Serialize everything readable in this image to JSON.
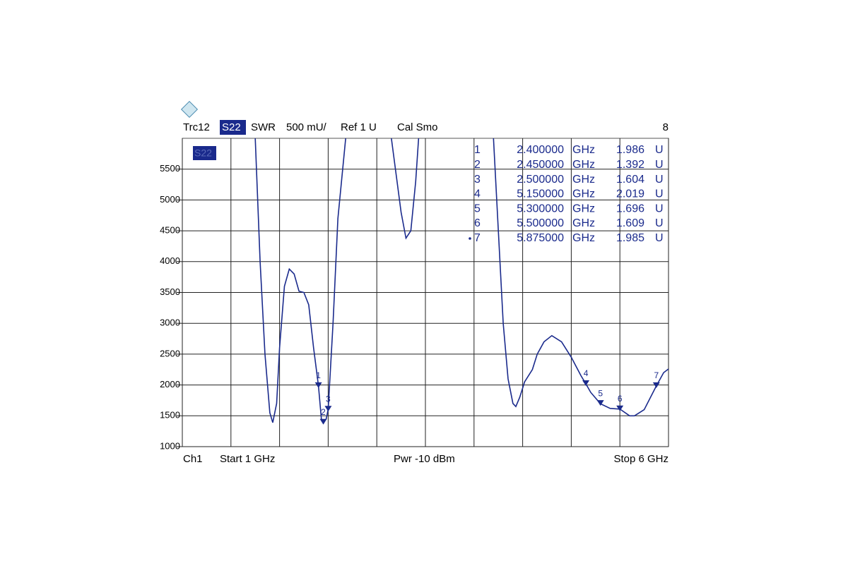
{
  "chart_data": {
    "type": "line",
    "header": {
      "trace": "Trc12",
      "param": "S22",
      "format": "SWR",
      "scale": "500 mU/",
      "ref": "Ref 1 U",
      "status": "Cal Smo",
      "window": "8"
    },
    "footer": {
      "channel": "Ch1",
      "start": "Start  1 GHz",
      "power": "Pwr  -10 dBm",
      "stop": "Stop  6 GHz"
    },
    "trace_label": "S22",
    "xlim": [
      1,
      6
    ],
    "xticks": [
      1,
      1.5,
      2,
      2.5,
      3,
      3.5,
      4,
      4.5,
      5,
      5.5,
      6
    ],
    "ylim": [
      1000,
      6000
    ],
    "yticks": [
      1000,
      1500,
      2000,
      2500,
      3000,
      3500,
      4000,
      4500,
      5000,
      5500
    ],
    "grid": true,
    "series": [
      {
        "name": "S22",
        "color": "#1a2a8c",
        "x": [
          1.75,
          1.8,
          1.85,
          1.9,
          1.93,
          1.97,
          2.0,
          2.05,
          2.1,
          2.15,
          2.2,
          2.25,
          2.3,
          2.35,
          2.4,
          2.43,
          2.45,
          2.48,
          2.5,
          2.55,
          2.6,
          2.68,
          2.9,
          3.15,
          3.2,
          3.25,
          3.3,
          3.35,
          3.4,
          3.43,
          3.8,
          4.2,
          4.25,
          4.3,
          4.35,
          4.4,
          4.43,
          4.47,
          4.52,
          4.6,
          4.65,
          4.72,
          4.8,
          4.9,
          5.0,
          5.1,
          5.15,
          5.2,
          5.3,
          5.4,
          5.5,
          5.6,
          5.65,
          5.75,
          5.875,
          5.95,
          6.0
        ],
        "values": [
          6000,
          4000,
          2500,
          1550,
          1390,
          1700,
          2600,
          3600,
          3880,
          3800,
          3520,
          3500,
          3300,
          2600,
          1986,
          1450,
          1392,
          1450,
          1604,
          3000,
          4700,
          6000,
          null,
          6000,
          5400,
          4800,
          4380,
          4500,
          5300,
          6000,
          null,
          6000,
          4500,
          3000,
          2100,
          1700,
          1650,
          1800,
          2050,
          2250,
          2500,
          2700,
          2800,
          2700,
          2450,
          2150,
          2019,
          1880,
          1696,
          1620,
          1609,
          1500,
          1500,
          1600,
          1985,
          2200,
          2260
        ]
      }
    ],
    "markers": {
      "x": [
        2.4,
        2.45,
        2.5,
        5.15,
        5.3,
        5.5,
        5.875
      ],
      "values": [
        1986,
        1392,
        1604,
        2019,
        1696,
        1609,
        1985
      ],
      "table": [
        [
          "1",
          "2.400000",
          "GHz",
          "1.986",
          "U"
        ],
        [
          "2",
          "2.450000",
          "GHz",
          "1.392",
          "U"
        ],
        [
          "3",
          "2.500000",
          "GHz",
          "1.604",
          "U"
        ],
        [
          "4",
          "5.150000",
          "GHz",
          "2.019",
          "U"
        ],
        [
          "5",
          "5.300000",
          "GHz",
          "1.696",
          "U"
        ],
        [
          "6",
          "5.500000",
          "GHz",
          "1.609",
          "U"
        ],
        [
          "7",
          "5.875000",
          "GHz",
          "1.985",
          "U"
        ]
      ]
    }
  }
}
